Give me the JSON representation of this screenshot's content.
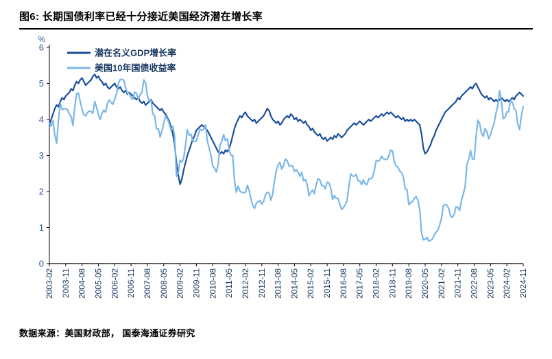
{
  "title": "图6: 长期国债利率已经十分接近美国经济潜在增长率",
  "footer": {
    "source_text": "数据来源：美国财政部， 国泰海通证券研究"
  },
  "colors": {
    "axis": "#000000",
    "axis_text": "#2f5496",
    "x_tick_text": "#17375e",
    "dark_line": "#1b4e9b",
    "light_line": "#7ab7e8"
  },
  "chart_data": {
    "type": "line",
    "title": "",
    "xlabel": "",
    "ylabel": "%",
    "ylim": [
      0,
      6
    ],
    "y_ticks": [
      0,
      1,
      2,
      3,
      4,
      5,
      6
    ],
    "grid": false,
    "legend_position": "top-left",
    "x_start": "2003-02",
    "x_step_months": 1,
    "x_tick_every": 9,
    "x_tick_labels": [
      "2003-02",
      "2003-11",
      "2004-08",
      "2005-05",
      "2006-02",
      "2006-11",
      "2007-08",
      "2008-05",
      "2009-02",
      "2009-11",
      "2010-08",
      "2011-05",
      "2012-02",
      "2012-11",
      "2013-08",
      "2014-05",
      "2015-02",
      "2015-11",
      "2016-08",
      "2017-05",
      "2018-02",
      "2018-11",
      "2019-08",
      "2020-05",
      "2021-02",
      "2021-11",
      "2022-08",
      "2023-05",
      "2024-02",
      "2024-11"
    ],
    "series": [
      {
        "id": "potential-gdp",
        "name": "潜在名义GDP增长率",
        "color": "#1b4e9b",
        "values": [
          3.85,
          4.0,
          4.15,
          4.3,
          4.4,
          4.35,
          4.5,
          4.6,
          4.55,
          4.65,
          4.7,
          4.75,
          4.85,
          4.8,
          4.95,
          5.05,
          5.0,
          5.1,
          5.15,
          5.05,
          4.95,
          5.0,
          5.05,
          5.1,
          5.2,
          5.25,
          5.15,
          5.2,
          5.1,
          5.05,
          4.95,
          5.0,
          4.9,
          4.85,
          4.9,
          4.95,
          5.0,
          4.9,
          4.85,
          4.9,
          4.8,
          4.75,
          4.8,
          4.7,
          4.75,
          4.7,
          4.65,
          4.6,
          4.55,
          4.6,
          4.5,
          4.45,
          4.5,
          4.4,
          4.45,
          4.5,
          4.55,
          4.45,
          4.4,
          4.35,
          4.3,
          4.25,
          4.3,
          4.2,
          4.15,
          4.05,
          3.95,
          3.8,
          3.6,
          3.3,
          2.8,
          2.45,
          2.2,
          2.35,
          2.6,
          2.8,
          3.0,
          3.15,
          3.3,
          3.45,
          3.55,
          3.7,
          3.75,
          3.8,
          3.85,
          3.8,
          3.75,
          3.7,
          3.6,
          3.5,
          3.4,
          3.3,
          3.2,
          3.1,
          3.05,
          3.1,
          3.05,
          3.15,
          3.1,
          3.2,
          3.35,
          3.55,
          3.75,
          3.9,
          4.0,
          4.1,
          4.05,
          4.15,
          4.2,
          4.1,
          4.05,
          4.0,
          3.95,
          4.0,
          3.9,
          3.95,
          4.0,
          4.05,
          4.1,
          4.2,
          4.3,
          4.25,
          4.1,
          4.0,
          3.95,
          3.9,
          3.95,
          3.85,
          3.9,
          4.0,
          4.05,
          4.1,
          4.05,
          4.15,
          4.1,
          4.0,
          4.05,
          3.95,
          4.0,
          3.95,
          3.9,
          3.95,
          3.85,
          3.8,
          3.7,
          3.75,
          3.65,
          3.6,
          3.55,
          3.6,
          3.5,
          3.45,
          3.5,
          3.4,
          3.45,
          3.5,
          3.45,
          3.55,
          3.5,
          3.6,
          3.55,
          3.5,
          3.55,
          3.6,
          3.7,
          3.75,
          3.8,
          3.85,
          3.9,
          3.85,
          3.9,
          3.95,
          3.9,
          3.85,
          3.9,
          3.95,
          4.0,
          3.95,
          4.0,
          4.05,
          4.1,
          4.05,
          4.1,
          4.15,
          4.1,
          4.15,
          4.2,
          4.15,
          4.2,
          4.15,
          4.1,
          4.05,
          4.1,
          4.05,
          4.0,
          4.05,
          3.95,
          4.0,
          3.95,
          4.0,
          3.95,
          4.0,
          3.95,
          3.9,
          3.85,
          3.6,
          3.2,
          3.05,
          3.1,
          3.2,
          3.3,
          3.45,
          3.55,
          3.7,
          3.8,
          3.9,
          4.0,
          4.1,
          4.2,
          4.25,
          4.3,
          4.35,
          4.4,
          4.45,
          4.5,
          4.6,
          4.55,
          4.65,
          4.7,
          4.75,
          4.8,
          4.85,
          4.9,
          4.85,
          4.95,
          5.0,
          4.9,
          4.8,
          4.7,
          4.65,
          4.6,
          4.65,
          4.55,
          4.6,
          4.55,
          4.5,
          4.55,
          4.5,
          4.55,
          4.6,
          4.55,
          4.5,
          4.55,
          4.5,
          4.55,
          4.6,
          4.55,
          4.65,
          4.7,
          4.75,
          4.7,
          4.65
        ]
      },
      {
        "id": "ust10y",
        "name": "美国10年国债收益率",
        "color": "#7ab7e8",
        "values": [
          3.9,
          3.81,
          3.96,
          3.57,
          3.33,
          3.98,
          4.45,
          4.27,
          4.29,
          4.3,
          4.27,
          4.15,
          4.08,
          3.83,
          4.35,
          4.72,
          4.73,
          4.5,
          4.28,
          4.13,
          4.1,
          4.19,
          4.23,
          4.22,
          4.17,
          4.5,
          4.34,
          4.14,
          4.0,
          4.18,
          4.26,
          4.2,
          4.46,
          4.54,
          4.47,
          4.42,
          4.57,
          4.72,
          4.99,
          5.11,
          5.11,
          5.09,
          4.88,
          4.72,
          4.73,
          4.6,
          4.56,
          4.76,
          4.72,
          4.56,
          4.69,
          4.75,
          5.1,
          5.0,
          4.67,
          4.52,
          4.53,
          4.15,
          4.1,
          3.74,
          3.74,
          3.51,
          3.68,
          3.88,
          4.1,
          4.01,
          3.89,
          3.69,
          3.81,
          3.53,
          2.42,
          2.52,
          2.87,
          2.82,
          2.93,
          3.29,
          3.72,
          3.56,
          3.59,
          3.4,
          3.39,
          3.4,
          3.59,
          3.73,
          3.69,
          3.73,
          3.85,
          3.42,
          3.2,
          3.01,
          2.7,
          2.65,
          2.54,
          2.76,
          3.29,
          3.39,
          3.58,
          3.41,
          3.46,
          3.17,
          3.0,
          3.0,
          2.3,
          1.98,
          2.15,
          2.01,
          1.98,
          1.97,
          1.97,
          2.17,
          2.05,
          1.8,
          1.62,
          1.53,
          1.68,
          1.72,
          1.75,
          1.65,
          1.72,
          1.91,
          1.98,
          1.96,
          1.76,
          1.93,
          2.3,
          2.58,
          2.74,
          2.81,
          2.62,
          2.72,
          2.9,
          2.86,
          2.71,
          2.72,
          2.71,
          2.56,
          2.6,
          2.54,
          2.42,
          2.53,
          2.3,
          2.33,
          2.21,
          1.88,
          1.98,
          2.04,
          1.94,
          2.2,
          2.36,
          2.32,
          2.17,
          2.17,
          2.07,
          2.26,
          2.24,
          2.09,
          1.78,
          1.89,
          1.81,
          1.81,
          1.64,
          1.5,
          1.56,
          1.63,
          1.76,
          2.14,
          2.49,
          2.43,
          2.42,
          2.48,
          2.3,
          2.3,
          2.19,
          2.32,
          2.21,
          2.2,
          2.36,
          2.35,
          2.4,
          2.58,
          2.86,
          2.84,
          2.87,
          2.98,
          2.91,
          2.89,
          2.89,
          3.0,
          3.15,
          3.12,
          2.83,
          2.71,
          2.68,
          2.57,
          2.53,
          2.4,
          2.07,
          2.06,
          1.63,
          1.7,
          1.71,
          1.81,
          1.86,
          1.76,
          1.5,
          0.87,
          0.66,
          0.67,
          0.73,
          0.62,
          0.65,
          0.68,
          0.79,
          0.87,
          0.93,
          1.08,
          1.26,
          1.61,
          1.64,
          1.62,
          1.52,
          1.32,
          1.28,
          1.37,
          1.58,
          1.56,
          1.47,
          1.76,
          1.93,
          2.13,
          2.75,
          2.9,
          3.14,
          2.9,
          2.9,
          3.52,
          3.98,
          3.89,
          3.62,
          3.53,
          3.75,
          3.66,
          3.46,
          3.57,
          3.75,
          3.9,
          4.17,
          4.38,
          4.8,
          4.5,
          4.02,
          4.06,
          4.21,
          4.21,
          4.54,
          4.48,
          4.31,
          4.25,
          3.87,
          3.72,
          4.1,
          4.36
        ]
      }
    ]
  }
}
